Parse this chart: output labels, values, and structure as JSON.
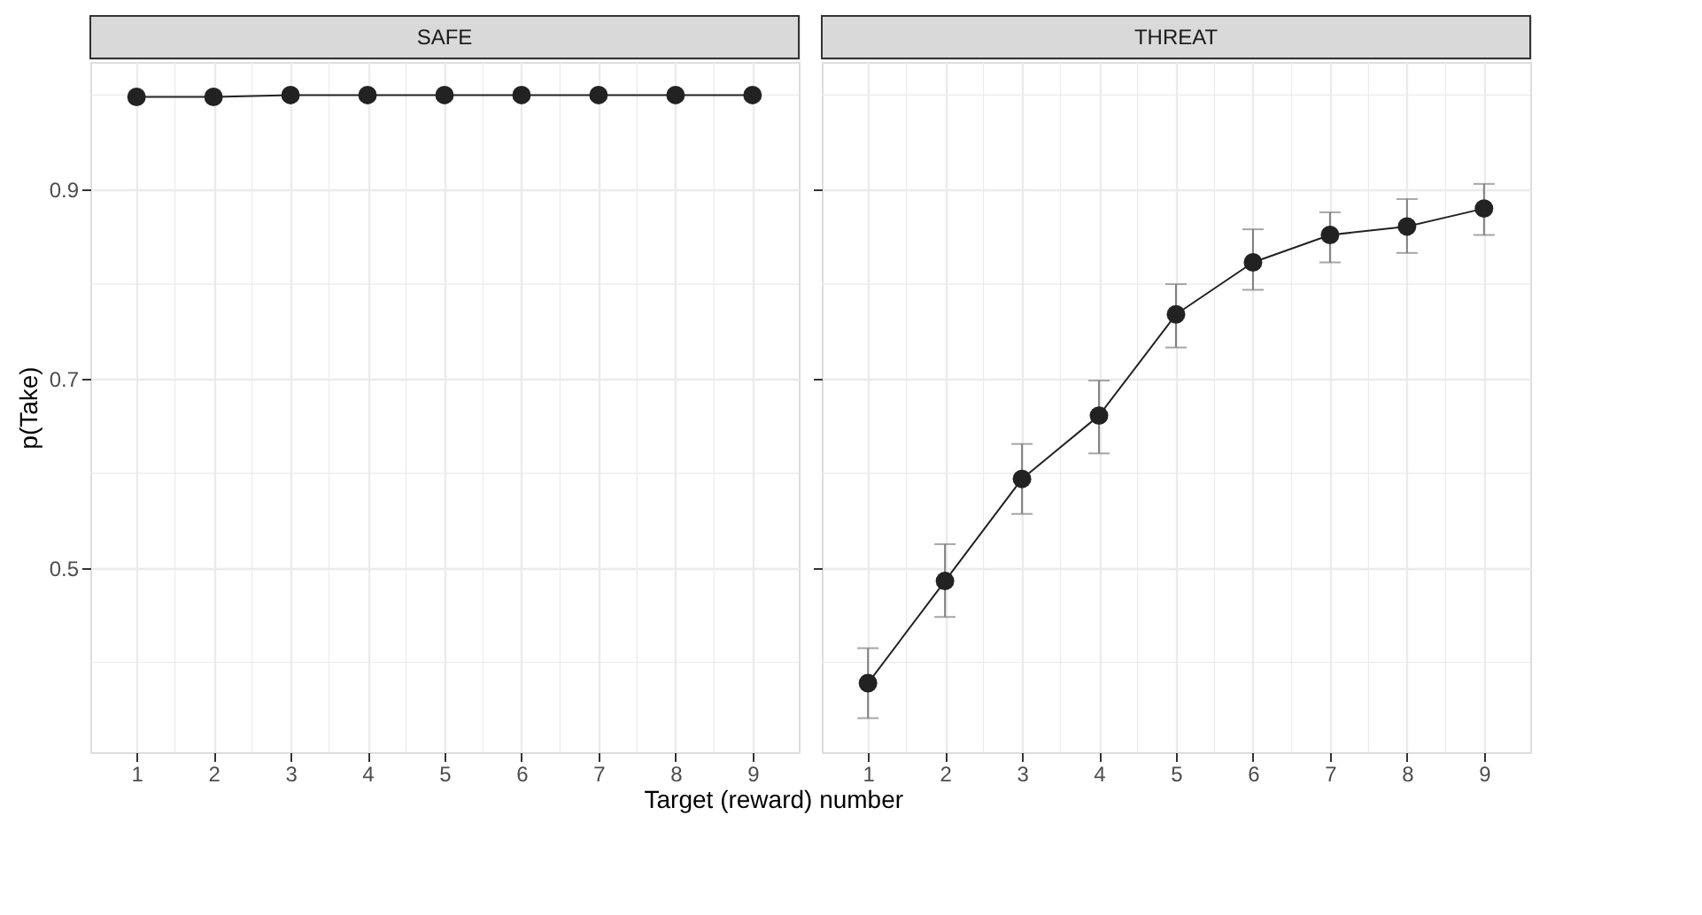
{
  "chart_data": [
    {
      "type": "line",
      "title": "SAFE",
      "xlabel": "Target (reward) number",
      "ylabel": "p(Take)",
      "marker": "circle",
      "line_style": "solid",
      "grid": true,
      "x": [
        1,
        2,
        3,
        4,
        5,
        6,
        7,
        8,
        9
      ],
      "series": [
        {
          "color": "#222222",
          "values": [
            0.998,
            0.998,
            1.0,
            1.0,
            1.0,
            1.0,
            1.0,
            1.0,
            1.0
          ]
        }
      ],
      "xlim": [
        0.4,
        9.6
      ],
      "xticks": [
        1,
        {
          "value": 1.5,
          "label": null
        },
        2,
        {
          "value": 2.5,
          "label": null
        },
        3,
        {
          "value": 3.5,
          "label": null
        },
        4,
        {
          "value": 4.5,
          "label": null
        },
        5,
        {
          "value": 5.5,
          "label": null
        },
        6,
        {
          "value": 6.5,
          "label": null
        },
        7,
        {
          "value": 7.5,
          "label": null
        },
        8,
        {
          "value": 8.5,
          "label": null
        },
        9
      ],
      "ylim": [
        0.305,
        1.035
      ],
      "yticks": [
        {
          "value": 0.4,
          "label": null
        },
        0.5,
        {
          "value": 0.6,
          "label": null
        },
        0.7,
        {
          "value": 0.8,
          "label": null
        },
        0.9,
        {
          "value": 1.0,
          "label": null
        }
      ]
    },
    {
      "type": "line",
      "title": "THREAT",
      "marker": "circle",
      "line_style": "solid",
      "grid": true,
      "tick_labels": "x",
      "x": [
        1,
        2,
        3,
        4,
        5,
        6,
        7,
        8,
        9
      ],
      "series": [
        {
          "color": "#222222",
          "values": [
            0.378,
            0.486,
            0.594,
            0.661,
            0.768,
            0.823,
            0.852,
            0.861,
            0.88
          ],
          "errors": [
            [
              0.341,
              0.415
            ],
            [
              0.448,
              0.525
            ],
            [
              0.557,
              0.631
            ],
            [
              0.621,
              0.698
            ],
            [
              0.733,
              0.8
            ],
            [
              0.794,
              0.858
            ],
            [
              0.823,
              0.876
            ],
            [
              0.833,
              0.89
            ],
            [
              0.852,
              0.906
            ]
          ]
        }
      ],
      "xlim": [
        0.4,
        9.6
      ],
      "xticks": [
        1,
        {
          "value": 1.5,
          "label": null
        },
        2,
        {
          "value": 2.5,
          "label": null
        },
        3,
        {
          "value": 3.5,
          "label": null
        },
        4,
        {
          "value": 4.5,
          "label": null
        },
        5,
        {
          "value": 5.5,
          "label": null
        },
        6,
        {
          "value": 6.5,
          "label": null
        },
        7,
        {
          "value": 7.5,
          "label": null
        },
        8,
        {
          "value": 8.5,
          "label": null
        },
        9
      ],
      "ylim": [
        0.305,
        1.035
      ],
      "yticks": [
        {
          "value": 0.4,
          "label": null
        },
        0.5,
        {
          "value": 0.6,
          "label": null
        },
        0.7,
        {
          "value": 0.8,
          "label": null
        },
        0.9,
        {
          "value": 1.0,
          "label": null
        }
      ]
    }
  ]
}
